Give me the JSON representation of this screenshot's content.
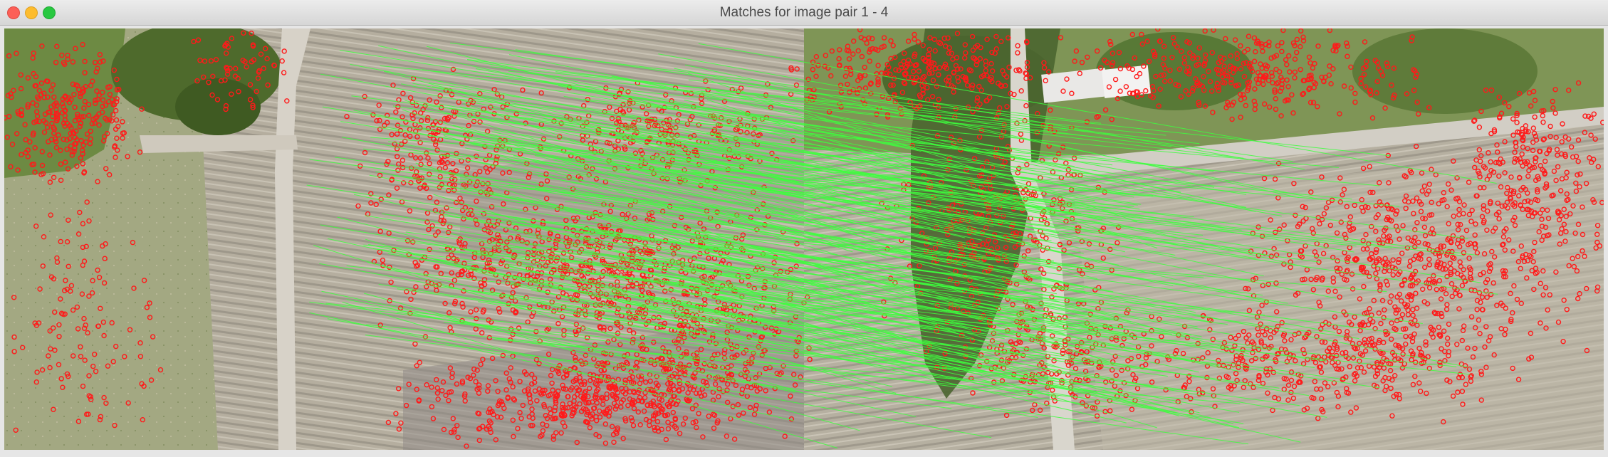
{
  "window": {
    "title": "Matches for image pair 1 - 4",
    "controls": [
      "close-button",
      "minimize-button",
      "zoom-button"
    ]
  },
  "view": {
    "left_image": "aerial field photo with dirt road and trees (left of pair)",
    "right_image": "aerial field photo with road, house and trees (right of pair)"
  },
  "colors": {
    "keypoint": "#ff1a1a",
    "match_line": "#3dff3d",
    "field": "#b8b2a3",
    "grass": "#8c9a6a",
    "trees": "#5d7a3a",
    "road": "#d8d4cc"
  }
}
